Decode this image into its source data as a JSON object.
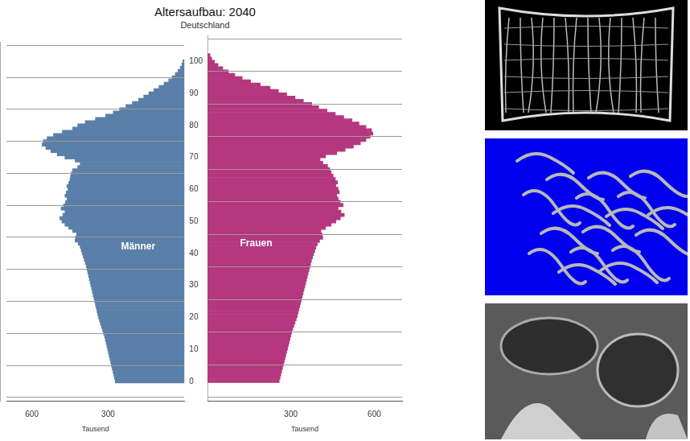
{
  "chart_data": {
    "type": "bar",
    "orientation": "horizontal",
    "title": "Altersaufbau: 2040",
    "subtitle": "Deutschland",
    "xlabel": "Tausend",
    "categories": [
      0,
      1,
      2,
      3,
      4,
      5,
      6,
      7,
      8,
      9,
      10,
      11,
      12,
      13,
      14,
      15,
      16,
      17,
      18,
      19,
      20,
      21,
      22,
      23,
      24,
      25,
      26,
      27,
      28,
      29,
      30,
      31,
      32,
      33,
      34,
      35,
      36,
      37,
      38,
      39,
      40,
      41,
      42,
      43,
      44,
      45,
      46,
      47,
      48,
      49,
      50,
      51,
      52,
      53,
      54,
      55,
      56,
      57,
      58,
      59,
      60,
      61,
      62,
      63,
      64,
      65,
      66,
      67,
      68,
      69,
      70,
      71,
      72,
      73,
      74,
      75,
      76,
      77,
      78,
      79,
      80,
      81,
      82,
      83,
      84,
      85,
      86,
      87,
      88,
      89,
      90,
      91,
      92,
      93,
      94,
      95,
      96,
      97,
      98,
      99,
      100
    ],
    "series": [
      {
        "name": "Männer",
        "color": "#5a7fa9",
        "values": [
          272,
          275,
          278,
          281,
          284,
          287,
          290,
          293,
          296,
          299,
          302,
          305,
          308,
          311,
          314,
          318,
          322,
          326,
          330,
          334,
          338,
          341,
          344,
          347,
          350,
          353,
          356,
          359,
          362,
          365,
          368,
          371,
          374,
          377,
          380,
          383,
          386,
          390,
          394,
          398,
          402,
          406,
          410,
          418,
          430,
          428,
          424,
          440,
          455,
          470,
          482,
          490,
          478,
          470,
          485,
          475,
          468,
          462,
          470,
          465,
          458,
          462,
          455,
          450,
          448,
          445,
          440,
          420,
          410,
          430,
          470,
          500,
          525,
          545,
          560,
          555,
          540,
          515,
          480,
          440,
          420,
          390,
          350,
          310,
          280,
          255,
          230,
          205,
          180,
          160,
          140,
          120,
          100,
          80,
          62,
          48,
          36,
          25,
          16,
          10,
          6
        ]
      },
      {
        "name": "Frauen",
        "color": "#b5377f",
        "values": [
          258,
          261,
          264,
          267,
          270,
          273,
          276,
          279,
          282,
          285,
          288,
          291,
          294,
          297,
          300,
          303,
          307,
          311,
          315,
          319,
          323,
          326,
          329,
          332,
          335,
          338,
          341,
          344,
          347,
          350,
          353,
          356,
          359,
          362,
          365,
          368,
          371,
          374,
          378,
          382,
          386,
          390,
          395,
          403,
          415,
          412,
          408,
          425,
          445,
          462,
          478,
          492,
          480,
          470,
          488,
          478,
          470,
          465,
          474,
          470,
          462,
          468,
          460,
          452,
          445,
          440,
          432,
          415,
          405,
          425,
          465,
          495,
          525,
          550,
          570,
          585,
          595,
          590,
          570,
          545,
          520,
          490,
          460,
          430,
          400,
          375,
          345,
          315,
          285,
          255,
          225,
          190,
          155,
          125,
          98,
          75,
          55,
          38,
          25,
          15,
          9
        ]
      }
    ],
    "xlim": [
      0,
      700
    ],
    "xticks": [
      300,
      600
    ],
    "ylim": [
      -1,
      101
    ],
    "yticks": [
      0,
      10,
      20,
      30,
      40,
      50,
      60,
      70,
      80,
      90,
      100
    ],
    "grid": "y"
  }
}
